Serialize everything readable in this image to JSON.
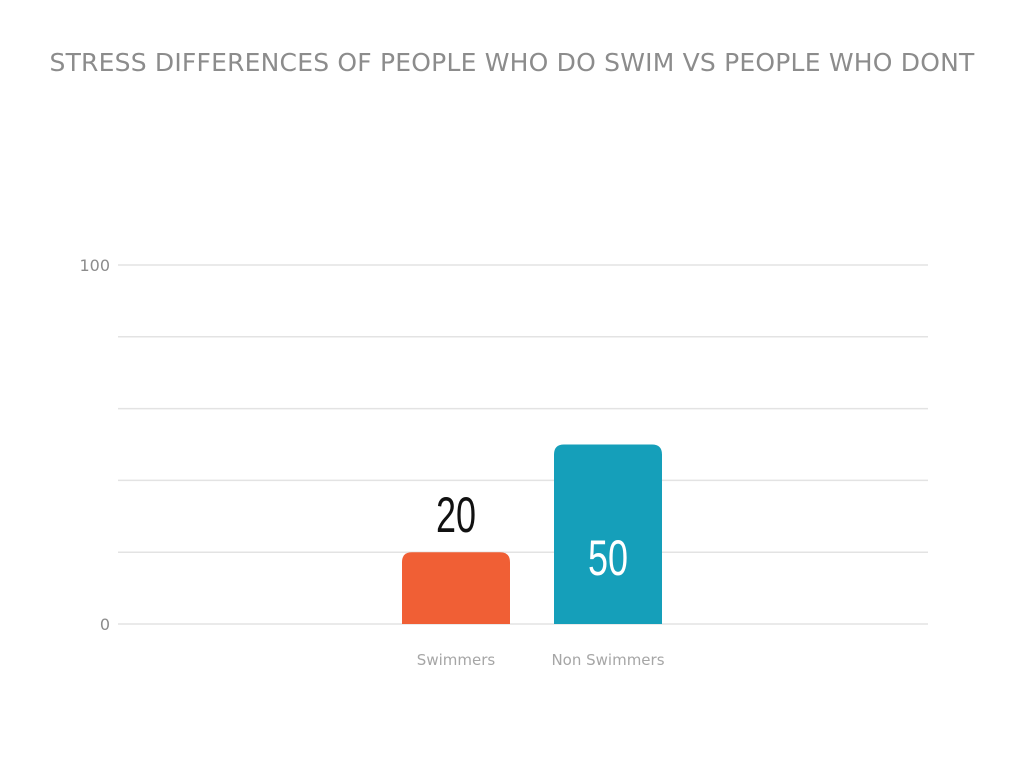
{
  "chart_data": {
    "type": "bar",
    "title": "STRESS DIFFERENCES OF PEOPLE WHO DO SWIM VS PEOPLE WHO DONT",
    "xlabel": "",
    "ylabel": "",
    "categories": [
      "Swimmers",
      "Non Swimmers"
    ],
    "values": [
      20,
      50
    ],
    "ylim": [
      0,
      100
    ],
    "yticks_labeled": [
      0,
      100
    ],
    "gridlines": [
      0,
      20,
      40,
      60,
      80,
      100
    ],
    "grid": true,
    "legend": "none",
    "colors": [
      "#f05f35",
      "#159fba"
    ],
    "data_label_colors": [
      "#111111",
      "#ffffff"
    ],
    "data_label_position": [
      "above",
      "inside"
    ]
  }
}
